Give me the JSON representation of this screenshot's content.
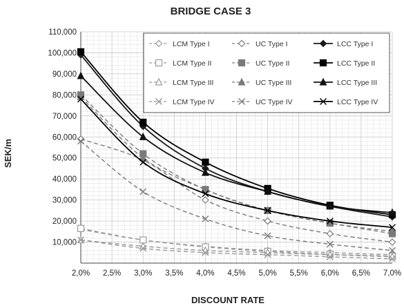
{
  "chart_data": {
    "type": "line",
    "title": "BRIDGE CASE 3",
    "xlabel": "DISCOUNT RATE",
    "ylabel": "SEK/m",
    "x": [
      2.0,
      3.0,
      4.0,
      5.0,
      6.0,
      7.0
    ],
    "x_tick_labels": [
      "2,0%",
      "2,5%",
      "3,0%",
      "3,5%",
      "4,0%",
      "4,5%",
      "5,0%",
      "5,5%",
      "6,0%",
      "6,5%",
      "7,0%"
    ],
    "x_ticks": [
      2.0,
      2.5,
      3.0,
      3.5,
      4.0,
      4.5,
      5.0,
      5.5,
      6.0,
      6.5,
      7.0
    ],
    "y_ticks": [
      10000,
      20000,
      30000,
      40000,
      50000,
      60000,
      70000,
      80000,
      90000,
      100000,
      110000
    ],
    "y_tick_labels": [
      "10,000",
      "20,000",
      "30,000",
      "40,000",
      "50,000",
      "60,000",
      "70,000",
      "80,000",
      "90,000",
      "100,000",
      "110,000"
    ],
    "xlim": [
      2.0,
      7.0
    ],
    "ylim": [
      0,
      110000
    ],
    "grid": true,
    "legend_position": "top-right",
    "series": [
      {
        "name": "LCM Type I",
        "values": [
          16000,
          11000,
          8000,
          6000,
          5000,
          4000
        ],
        "color": "#9a9a9a",
        "dash": "dashed",
        "marker": "diamond-open"
      },
      {
        "name": "UC Type I",
        "values": [
          59000,
          49000,
          30000,
          20000,
          14000,
          10000
        ],
        "color": "#7a7a7a",
        "dash": "dashed",
        "marker": "diamond-open"
      },
      {
        "name": "LCC Type I",
        "values": [
          99000,
          65000,
          45000,
          34000,
          27000,
          22000
        ],
        "color": "#1a1a1a",
        "dash": "solid",
        "marker": "diamond-filled"
      },
      {
        "name": "LCM Type II",
        "values": [
          16500,
          11000,
          7700,
          5600,
          4200,
          3300
        ],
        "color": "#9a9a9a",
        "dash": "dashed",
        "marker": "square-open"
      },
      {
        "name": "UC Type II",
        "values": [
          80000,
          52000,
          35000,
          25000,
          19000,
          14000
        ],
        "color": "#7a7a7a",
        "dash": "dashed",
        "marker": "square-filled"
      },
      {
        "name": "LCC Type II",
        "values": [
          100500,
          67000,
          48000,
          35500,
          27500,
          23000
        ],
        "color": "#000000",
        "dash": "solid",
        "marker": "square-filled"
      },
      {
        "name": "LCM Type III",
        "values": [
          11000,
          8000,
          6000,
          5000,
          4000,
          3000
        ],
        "color": "#9a9a9a",
        "dash": "dashed",
        "marker": "triangle-open"
      },
      {
        "name": "UC Type III",
        "values": [
          79000,
          50000,
          35000,
          25000,
          19000,
          15000
        ],
        "color": "#7a7a7a",
        "dash": "dashed",
        "marker": "triangle-filled"
      },
      {
        "name": "LCC Type III",
        "values": [
          89000,
          60000,
          43000,
          34000,
          27000,
          24000
        ],
        "color": "#111111",
        "dash": "solid",
        "marker": "triangle-filled"
      },
      {
        "name": "LCM Type IV",
        "values": [
          11000,
          7000,
          5000,
          4000,
          3000,
          2000
        ],
        "color": "#9a9a9a",
        "dash": "dashed",
        "marker": "x"
      },
      {
        "name": "UC Type IV",
        "values": [
          58000,
          34000,
          21000,
          13000,
          9000,
          6000
        ],
        "color": "#7a7a7a",
        "dash": "dashed",
        "marker": "x"
      },
      {
        "name": "LCC Type IV",
        "values": [
          78000,
          48000,
          33000,
          25000,
          20000,
          17000
        ],
        "color": "#000000",
        "dash": "solid",
        "marker": "x"
      }
    ]
  }
}
